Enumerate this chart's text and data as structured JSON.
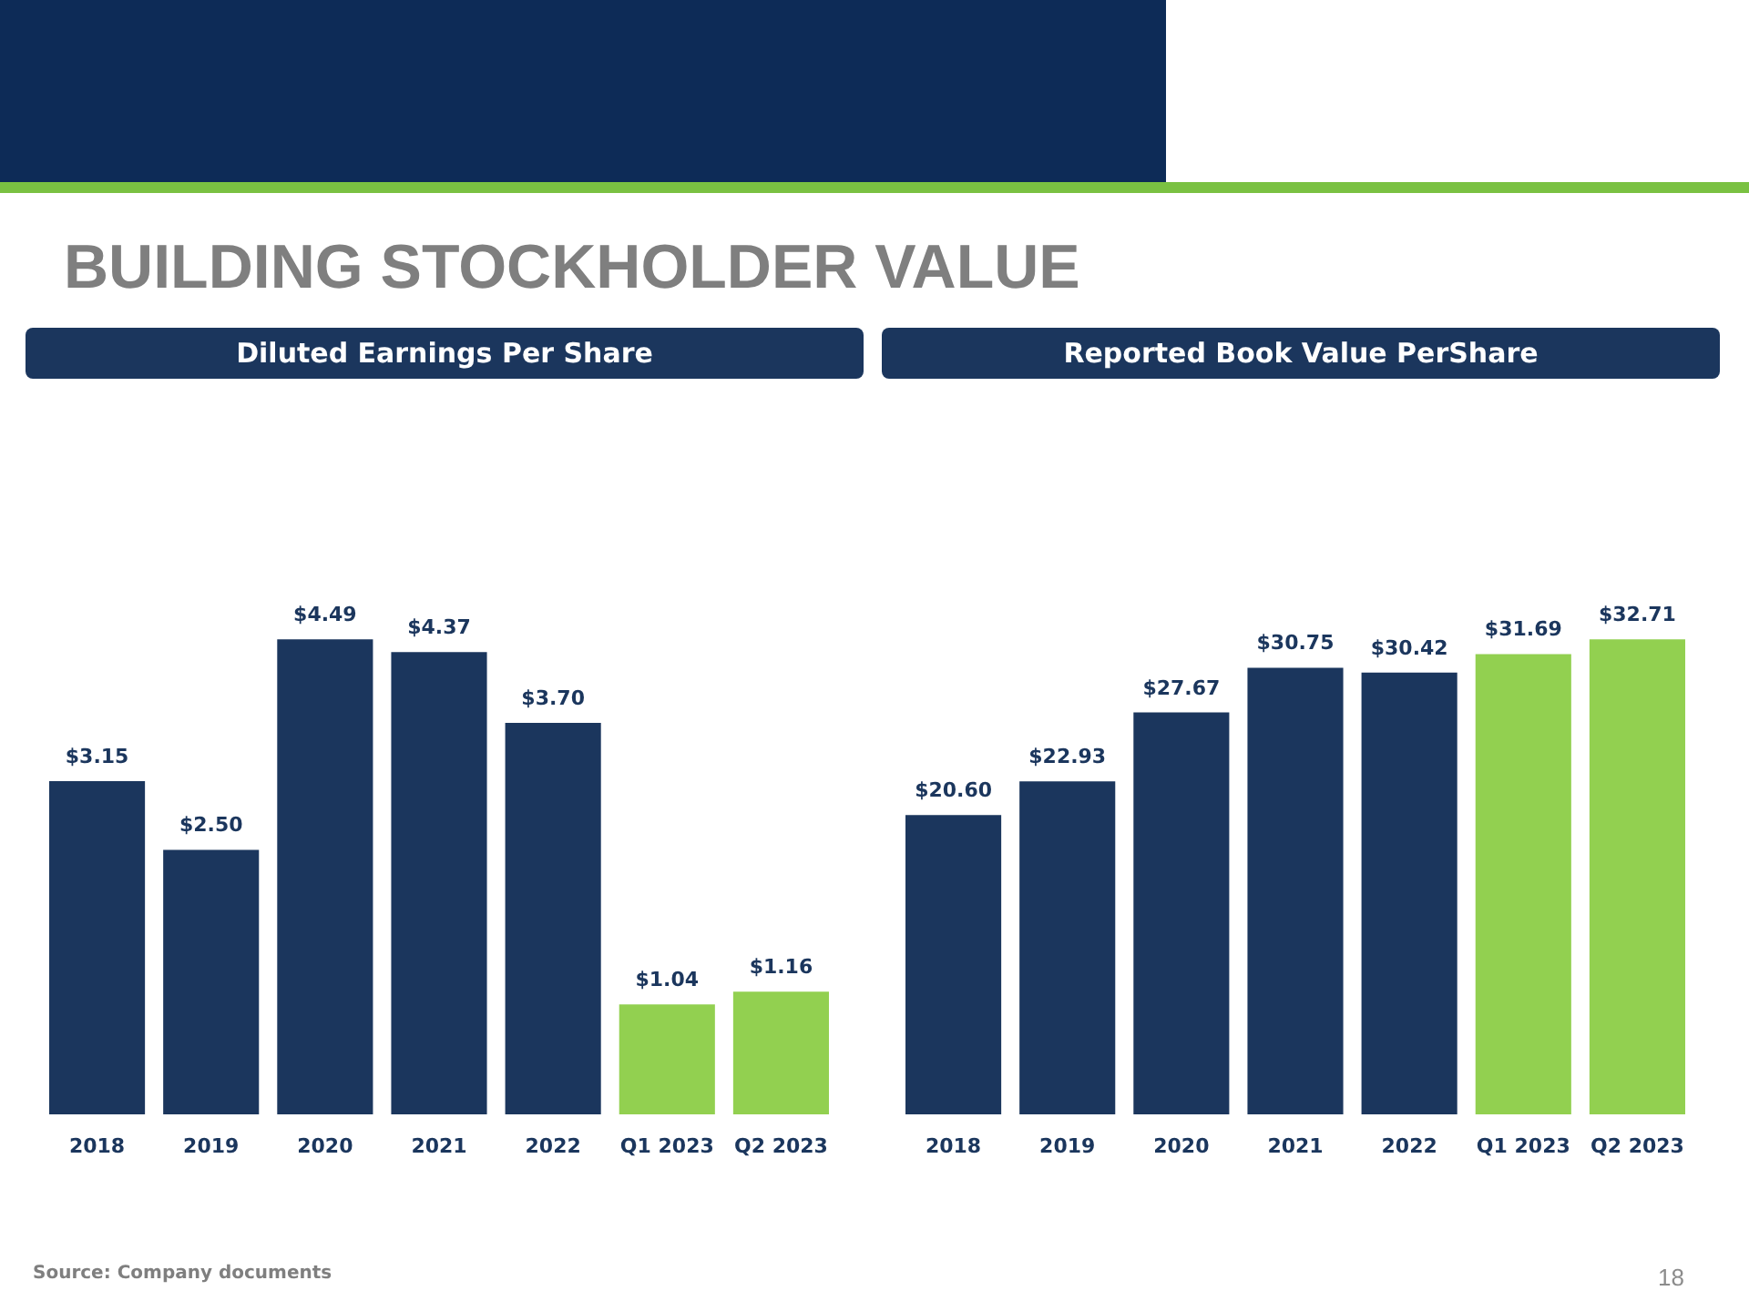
{
  "chart_data": [
    {
      "type": "bar",
      "title": "Diluted Earnings Per Share",
      "categories": [
        "2018",
        "2019",
        "2020",
        "2021",
        "2022",
        "Q1 2023",
        "Q2 2023"
      ],
      "values": [
        3.15,
        2.5,
        4.49,
        4.37,
        3.7,
        1.04,
        1.16
      ],
      "colors": [
        "#1b365d",
        "#1b365d",
        "#1b365d",
        "#1b365d",
        "#1b365d",
        "#92d050",
        "#92d050"
      ],
      "value_labels": [
        "$3.15",
        "$2.50",
        "$4.49",
        "$4.37",
        "$3.70",
        "$1.04",
        "$1.16"
      ],
      "tick_labels": "x",
      "annotations": [
        "BUILDING STOCKHOLDER VALUE",
        "Source: Company documents",
        "18"
      ]
    },
    {
      "type": "bar",
      "title": "Reported Book Value PerShare",
      "categories": [
        "2018",
        "2019",
        "2020",
        "2021",
        "2022",
        "Q1 2023",
        "Q2 2023"
      ],
      "values": [
        20.6,
        22.93,
        27.67,
        30.75,
        30.42,
        31.69,
        32.71
      ],
      "colors": [
        "#1b365d",
        "#1b365d",
        "#1b365d",
        "#1b365d",
        "#1b365d",
        "#92d050",
        "#92d050"
      ],
      "value_labels": [
        "$20.60",
        "$22.93",
        "$27.67",
        "$30.75",
        "$30.42",
        "$31.69",
        "$32.71"
      ],
      "tick_labels": "x"
    }
  ]
}
